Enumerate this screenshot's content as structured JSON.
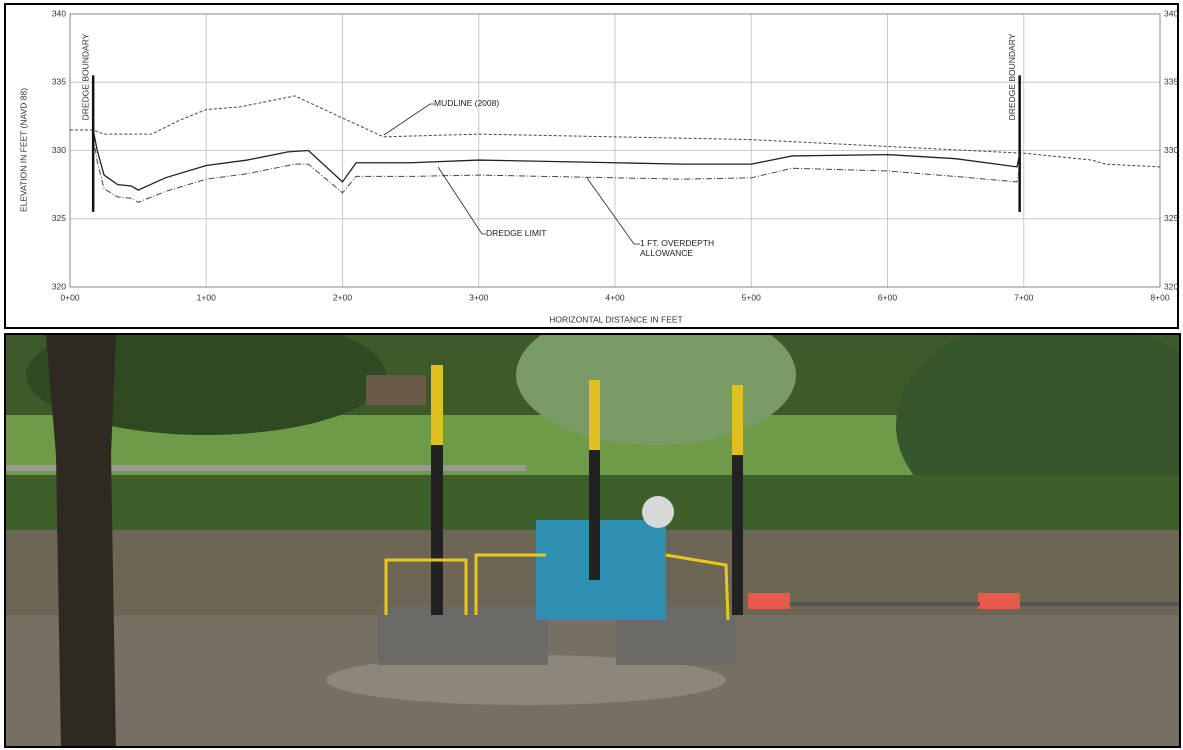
{
  "chart_data": {
    "type": "line",
    "xlabel": "HORIZONTAL DISTANCE IN FEET",
    "ylabel": "ELEVATION IN FEET (NAVD 88)",
    "xlim": [
      0,
      800
    ],
    "xticks": [
      {
        "value": 0,
        "label": "0+00"
      },
      {
        "value": 100,
        "label": "1+00"
      },
      {
        "value": 200,
        "label": "2+00"
      },
      {
        "value": 300,
        "label": "3+00"
      },
      {
        "value": 400,
        "label": "4+00"
      },
      {
        "value": 500,
        "label": "5+00"
      },
      {
        "value": 600,
        "label": "6+00"
      },
      {
        "value": 700,
        "label": "7+00"
      },
      {
        "value": 800,
        "label": "8+00"
      }
    ],
    "ylim": [
      320,
      340
    ],
    "yticks": [
      320,
      325,
      330,
      335,
      340
    ],
    "grid": true,
    "series": [
      {
        "name": "MUDLINE (2008)",
        "color": "#444444",
        "style": "dashed",
        "x": [
          0,
          17,
          25,
          60,
          80,
          100,
          125,
          165,
          230,
          300,
          400,
          500,
          600,
          700,
          720,
          750,
          760,
          800
        ],
        "values": [
          331.5,
          331.5,
          331.2,
          331.2,
          332.2,
          333,
          333.2,
          334,
          331,
          331.2,
          331,
          330.8,
          330.3,
          329.8,
          329.6,
          329.3,
          329,
          328.8
        ]
      },
      {
        "name": "DREDGE LIMIT",
        "color": "#222222",
        "style": "solid",
        "x": [
          17,
          20,
          25,
          35,
          45,
          50,
          70,
          100,
          130,
          160,
          175,
          200,
          210,
          250,
          300,
          400,
          450,
          500,
          530,
          600,
          650,
          695,
          697
        ],
        "values": [
          331.5,
          330,
          328.2,
          327.5,
          327.4,
          327.1,
          328,
          328.9,
          329.3,
          329.9,
          330,
          327.7,
          329.1,
          329.1,
          329.3,
          329.1,
          329,
          329,
          329.6,
          329.7,
          329.4,
          328.8,
          329.7
        ]
      },
      {
        "name": "1 FT. OVERDEPTH ALLOWANCE",
        "color": "#444444",
        "style": "dashdot",
        "x": [
          17,
          20,
          25,
          35,
          45,
          50,
          70,
          100,
          130,
          165,
          175,
          200,
          210,
          250,
          300,
          400,
          450,
          500,
          530,
          600,
          650,
          695,
          697
        ],
        "values": [
          331,
          329.2,
          327.2,
          326.6,
          326.5,
          326.2,
          327,
          327.9,
          328.3,
          329,
          329,
          326.9,
          328.1,
          328.1,
          328.2,
          328,
          327.9,
          328,
          328.7,
          328.5,
          328.1,
          327.7,
          328.7
        ]
      }
    ],
    "boundaries": [
      {
        "label": "DREDGE BOUNDARY",
        "x": 17,
        "y": [
          325.5,
          335.5
        ]
      },
      {
        "label": "DREDGE BOUNDARY",
        "x": 697,
        "y": [
          325.5,
          335.5
        ]
      }
    ]
  }
}
